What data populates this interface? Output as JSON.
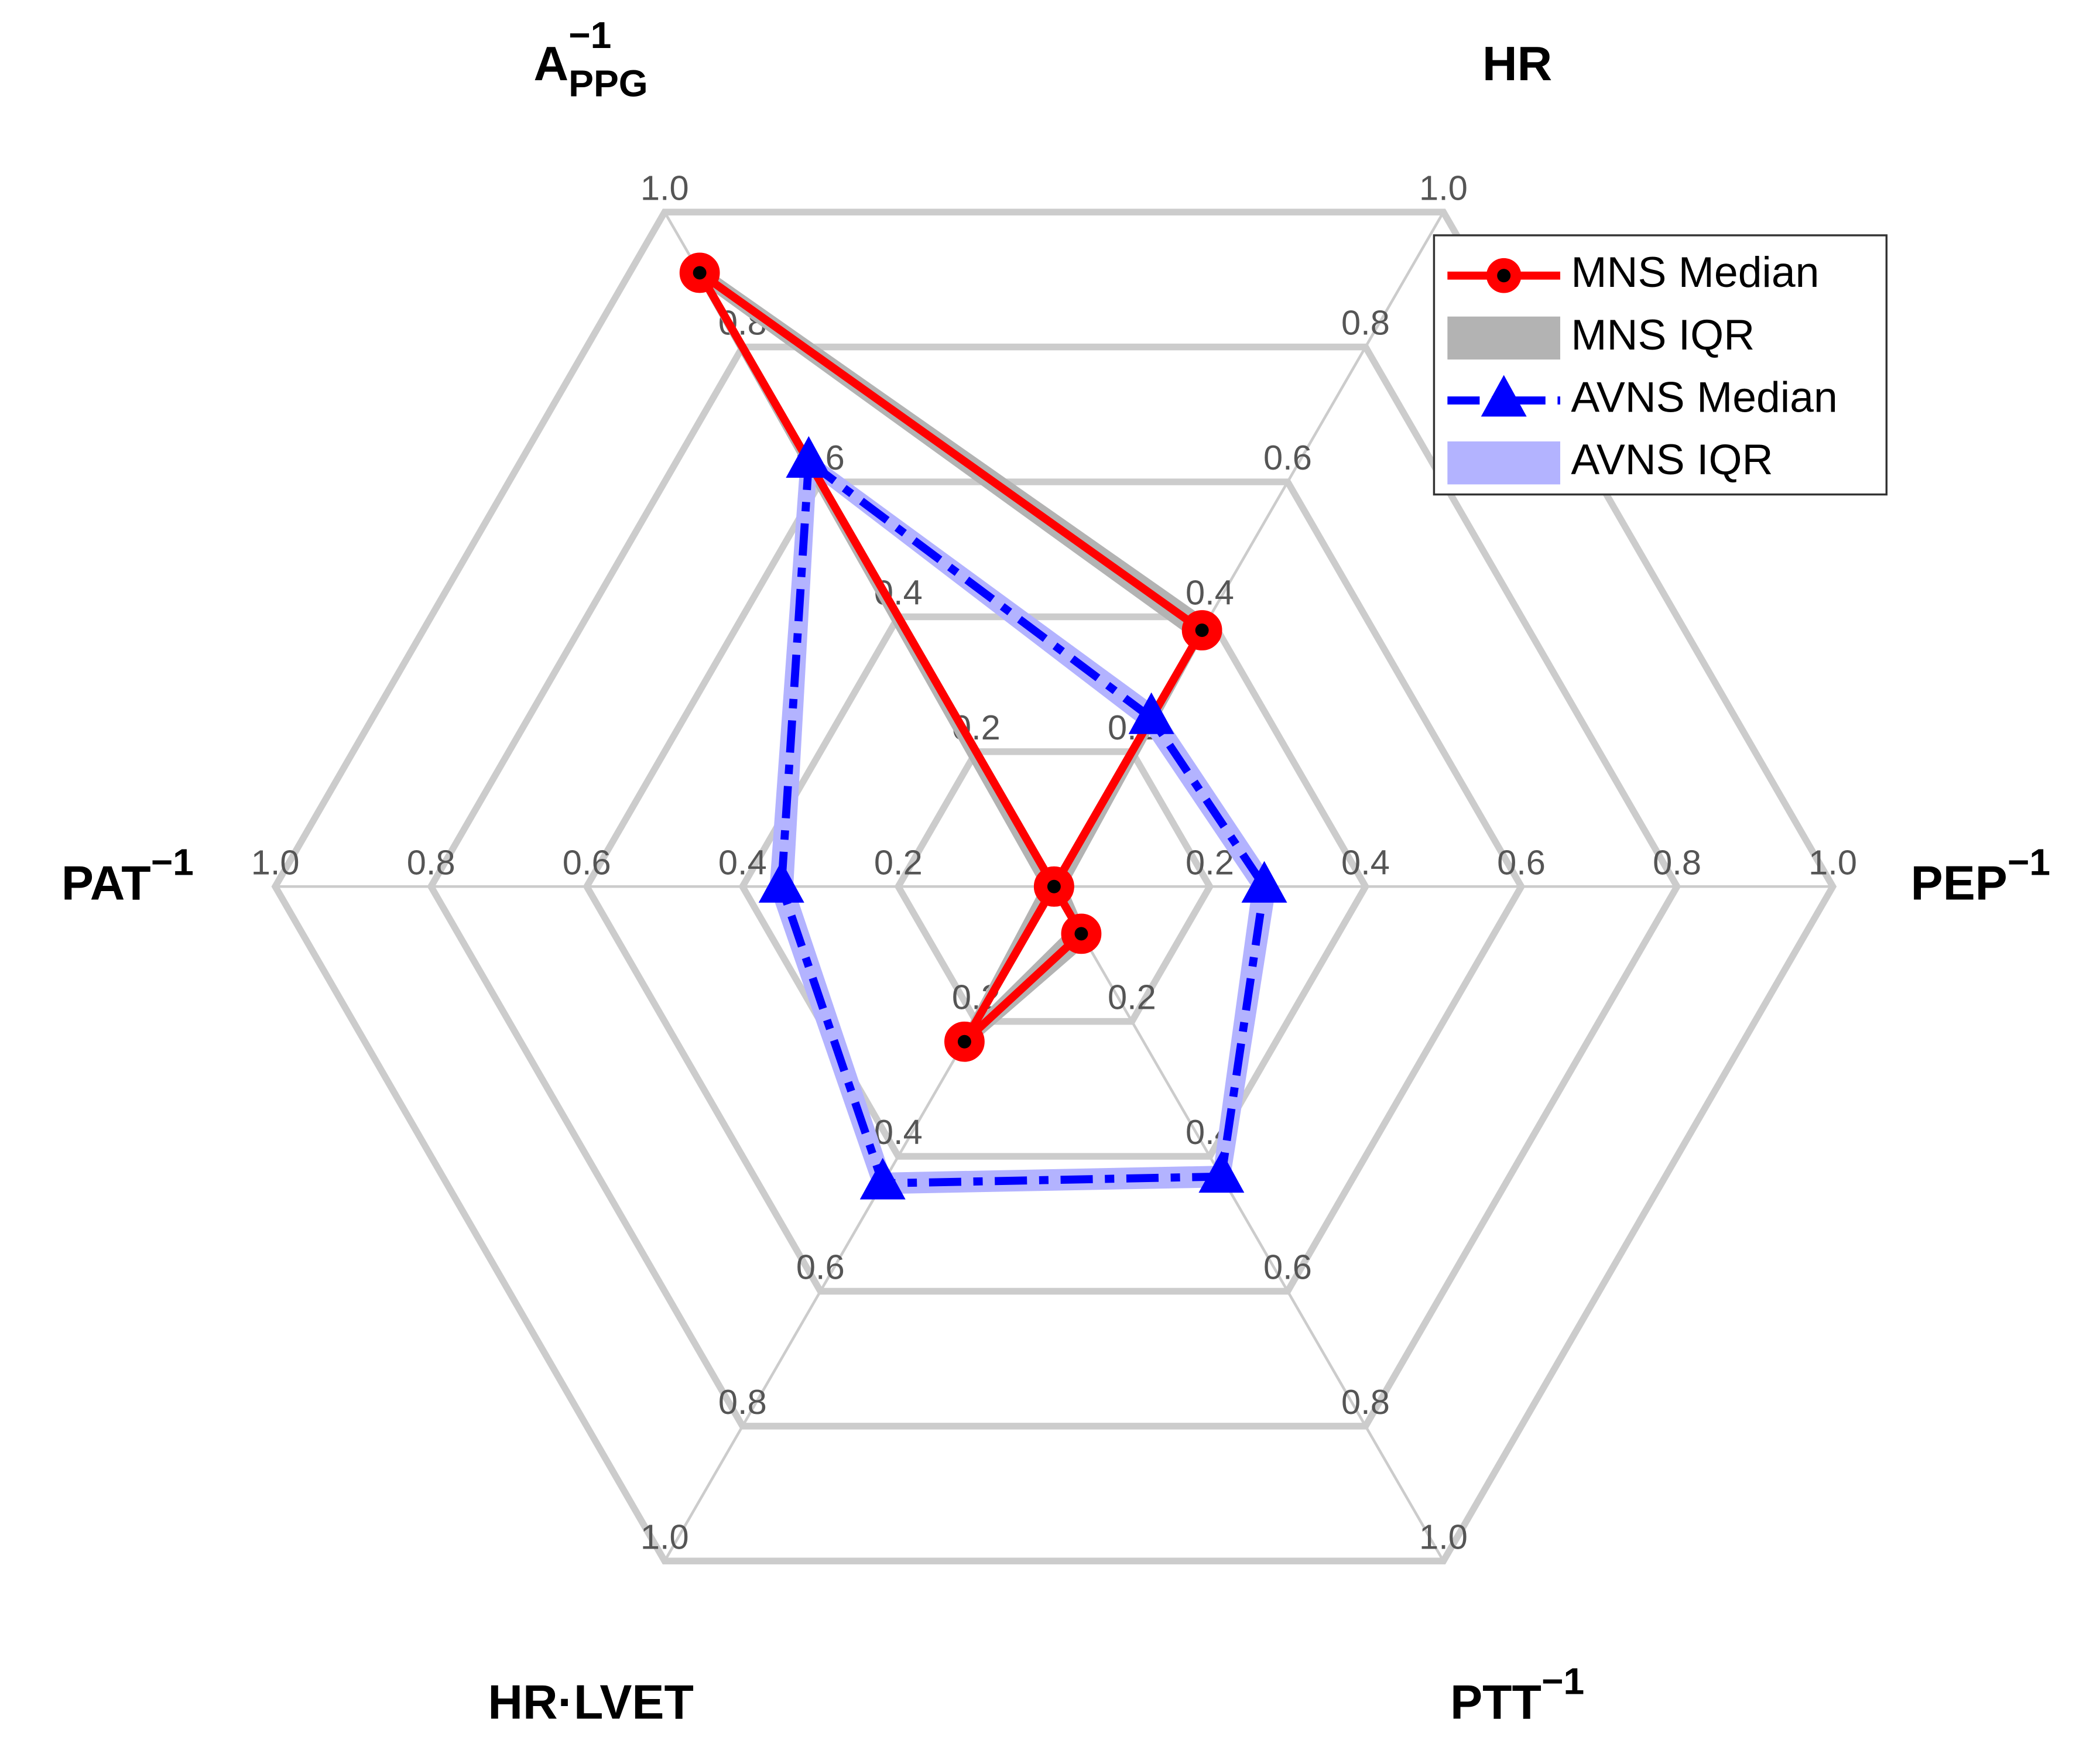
{
  "chart_data": {
    "type": "radar",
    "categories": [
      "A",
      "HR",
      "PEP",
      "PTT",
      "HR·LVET",
      "PAT"
    ],
    "category_subscripts": [
      "PPG",
      null,
      null,
      null,
      null,
      null
    ],
    "category_superscripts": [
      "−1",
      null,
      "−1",
      "−1",
      null,
      "−1"
    ],
    "rlim": [
      0,
      1
    ],
    "rticks": [
      0.2,
      0.4,
      0.6,
      0.8,
      {
        "value": 1,
        "label": "1.0"
      }
    ],
    "grid": true,
    "legend": "upper right",
    "series": [
      {
        "name": "MNS Median",
        "color": "#ff0000",
        "marker": "circle",
        "dash": "solid",
        "values": [
          0.91,
          0.38,
          0,
          0.07,
          0.23,
          0
        ]
      },
      {
        "name": "MNS IQR",
        "color": "#b3b3b3",
        "lower": [
          0.9,
          0.37,
          0,
          0.06,
          0.22,
          0
        ],
        "upper": [
          0.92,
          0.39,
          0.01,
          0.08,
          0.24,
          0.01
        ]
      },
      {
        "name": "AVNS Median",
        "color": "#0000ff",
        "marker": "triangle",
        "dash": "dashdot",
        "values": [
          0.63,
          0.25,
          0.27,
          0.43,
          0.44,
          0.35
        ]
      },
      {
        "name": "AVNS IQR",
        "color": "#b3b3ff",
        "lower": [
          0.62,
          0.24,
          0.26,
          0.42,
          0.43,
          0.34
        ],
        "upper": [
          0.64,
          0.26,
          0.28,
          0.44,
          0.45,
          0.36
        ]
      }
    ]
  }
}
